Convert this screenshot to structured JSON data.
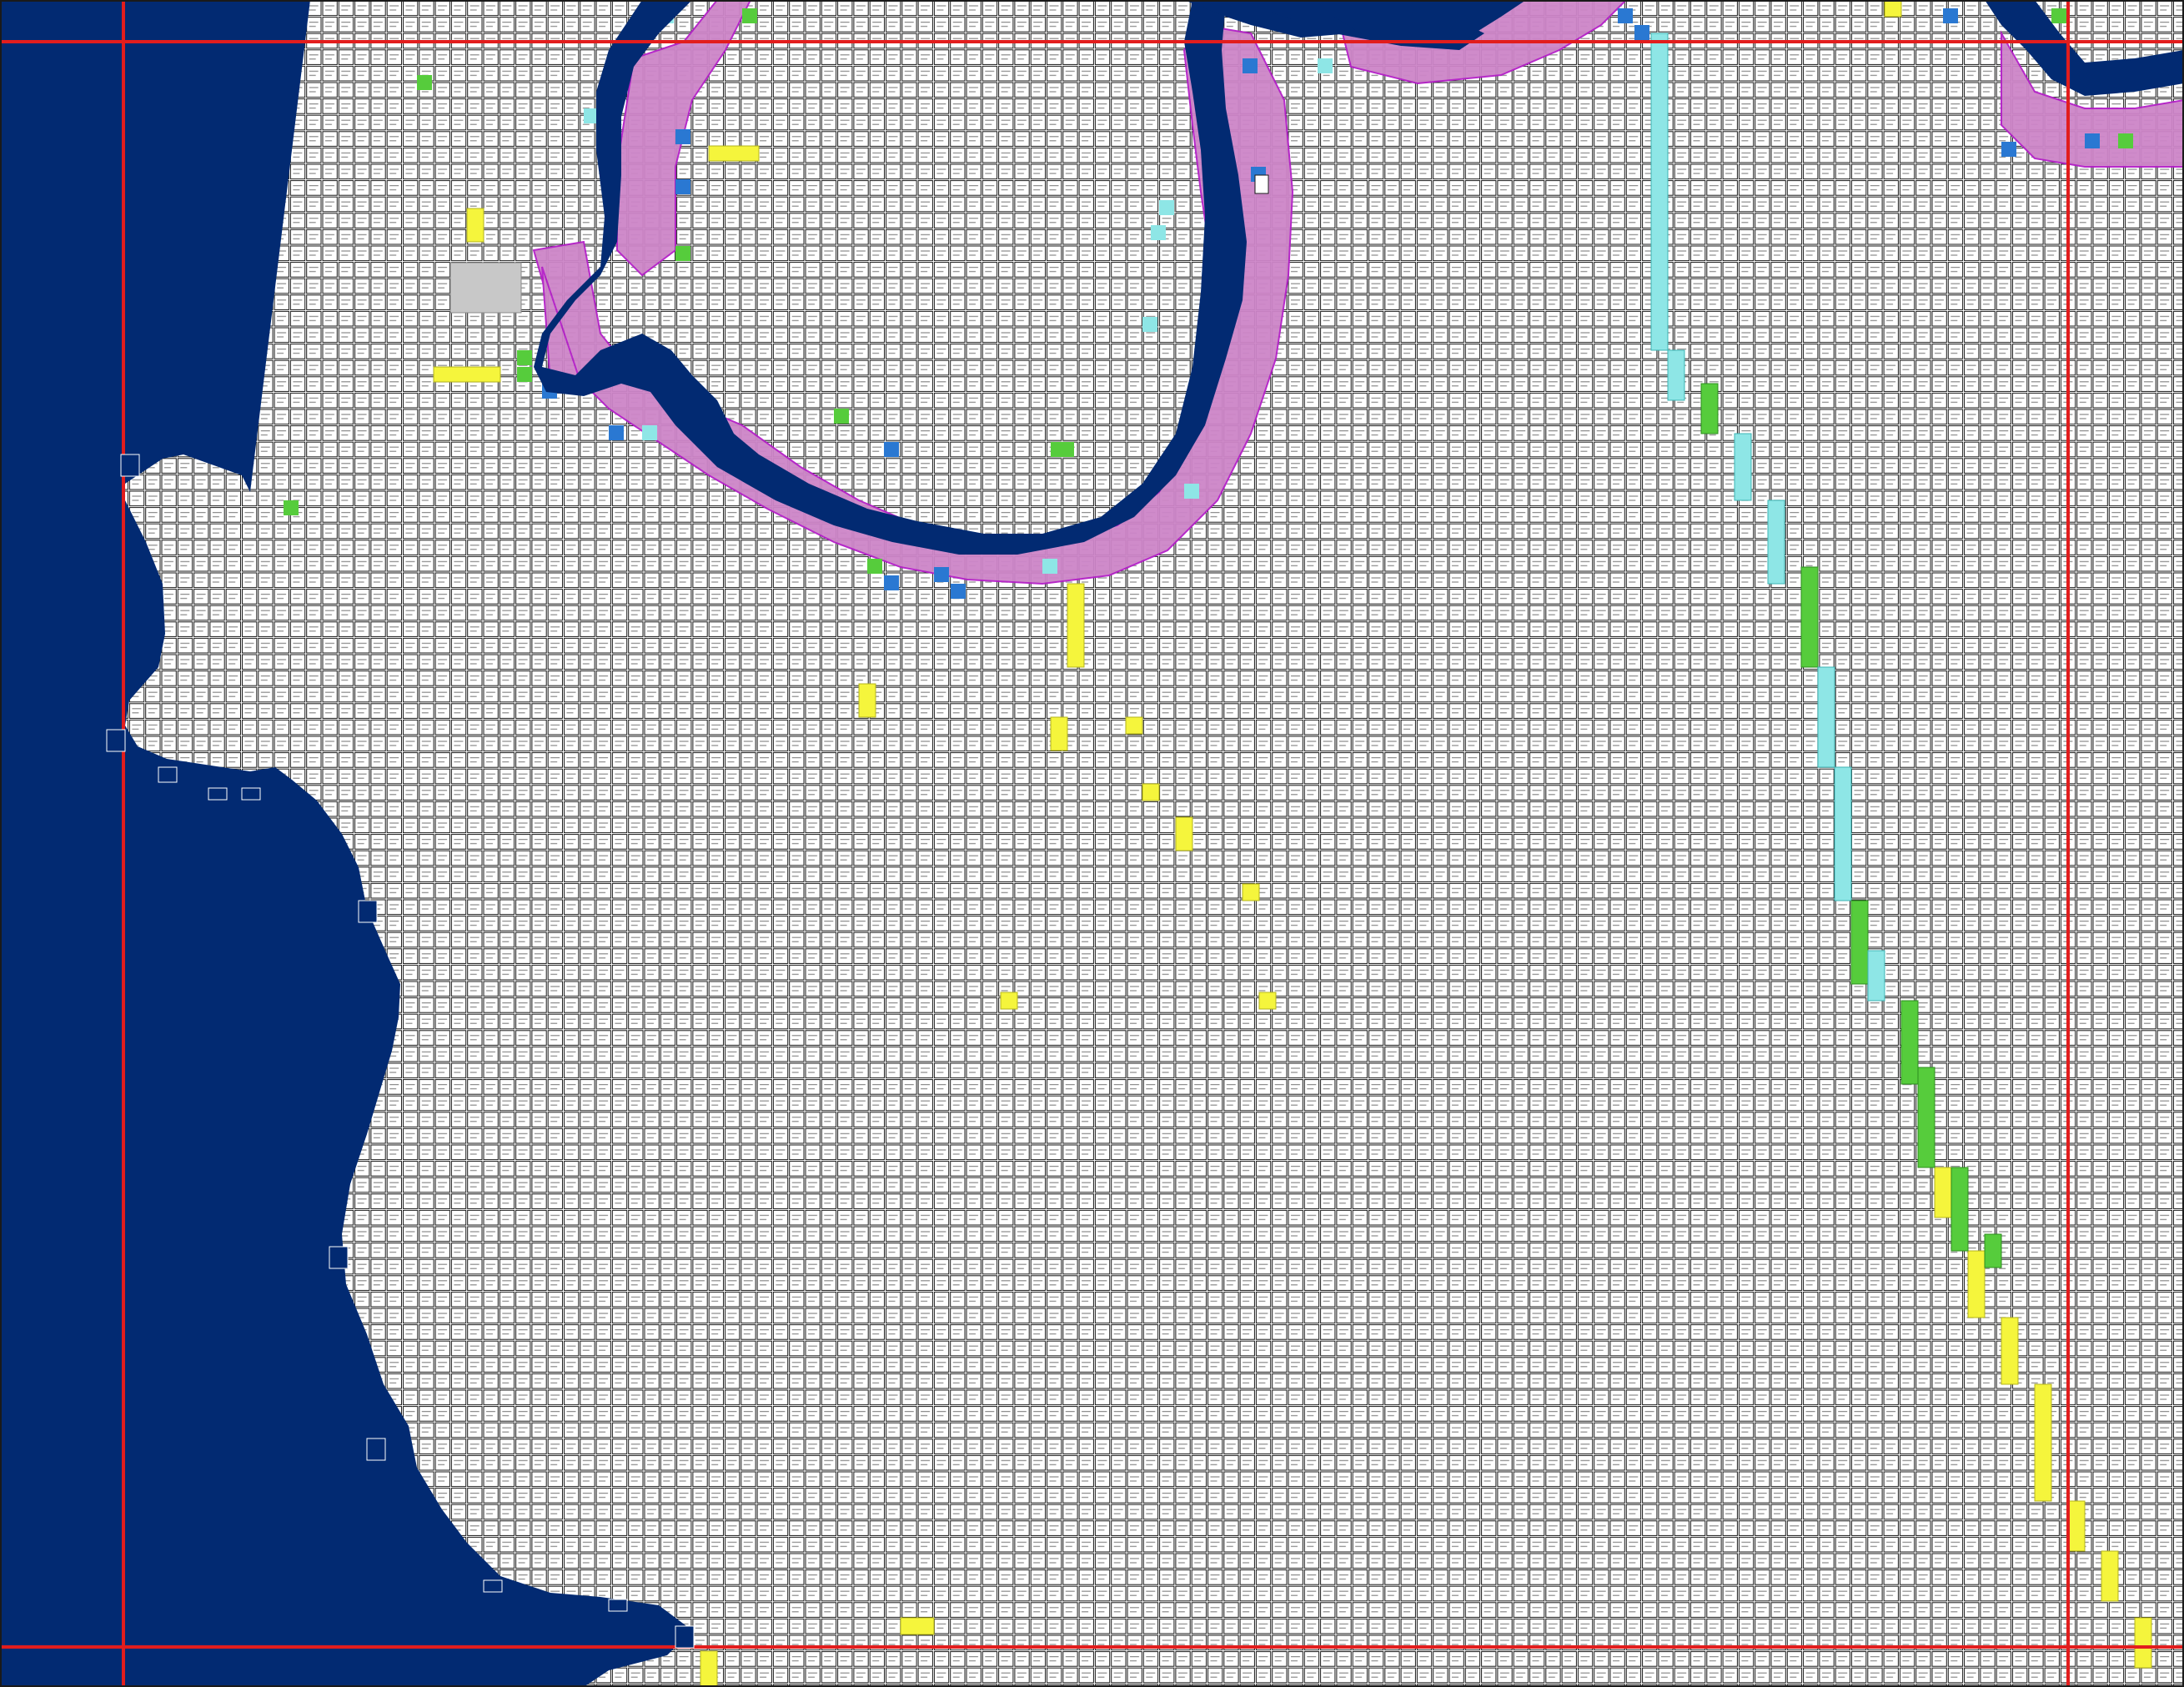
{
  "colors": {
    "water": "#022a72",
    "grid_line": "#1a1a1a",
    "cell_bg": "#ffffff",
    "cell_text": "#333333",
    "flood_pink": "#cd85c8",
    "flood_pink_border": "#b41ec8",
    "highlight_yellow": "#f5f53c",
    "highlight_cyan": "#8ee6e6",
    "highlight_green": "#56cc3c",
    "highlight_blue": "#2a78d2",
    "gray_block": "#c8c8c8",
    "boundary_red": "#e21d1d"
  },
  "legend": [],
  "map": {
    "layers": [
      {
        "name": "water-body",
        "color_key": "water"
      },
      {
        "name": "parcel-grid",
        "color_key": "grid_line"
      },
      {
        "name": "flood-zone-cells",
        "color_key": "flood_pink"
      },
      {
        "name": "sensor-highlight-cells",
        "color_key": "highlight_yellow"
      },
      {
        "name": "boundary-lines",
        "color_key": "boundary_red"
      }
    ]
  }
}
